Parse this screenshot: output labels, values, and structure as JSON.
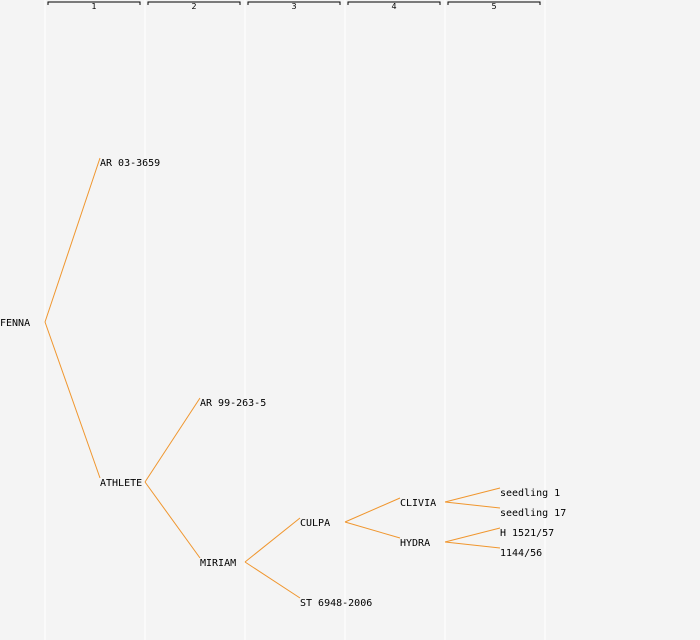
{
  "colors": {
    "background": "#f4f4f4",
    "column_divider": "#ffffff",
    "bracket": "#000000",
    "edge": "#f0962e",
    "text": "#000000"
  },
  "generations": [
    "1",
    "2",
    "3",
    "4",
    "5"
  ],
  "nodes": [
    {
      "id": "fenna",
      "label": "FENNA",
      "gen": 0,
      "row": 8
    },
    {
      "id": "ar-03-3659",
      "label": "AR 03-3659",
      "gen": 1,
      "row": 4
    },
    {
      "id": "athlete",
      "label": "ATHLETE",
      "gen": 1,
      "row": 12
    },
    {
      "id": "ar-99-263-5",
      "label": "AR 99-263-5",
      "gen": 2,
      "row": 10
    },
    {
      "id": "miriam",
      "label": "MIRIAM",
      "gen": 2,
      "row": 14
    },
    {
      "id": "culpa",
      "label": "CULPA",
      "gen": 3,
      "row": 13
    },
    {
      "id": "st-6948-2006",
      "label": "ST 6948-2006",
      "gen": 3,
      "row": 15
    },
    {
      "id": "clivia",
      "label": "CLIVIA",
      "gen": 4,
      "row": 12.5
    },
    {
      "id": "hydra",
      "label": "HYDRA",
      "gen": 4,
      "row": 13.5
    },
    {
      "id": "seedling-1",
      "label": "seedling 1",
      "gen": 5,
      "row": 12.25
    },
    {
      "id": "seedling-17",
      "label": "seedling 17",
      "gen": 5,
      "row": 12.75
    },
    {
      "id": "h-1521-57",
      "label": "H 1521/57",
      "gen": 5,
      "row": 13.25
    },
    {
      "id": "1144-56",
      "label": "1144/56",
      "gen": 5,
      "row": 13.75
    }
  ],
  "edges": [
    [
      "fenna",
      "ar-03-3659"
    ],
    [
      "fenna",
      "athlete"
    ],
    [
      "athlete",
      "ar-99-263-5"
    ],
    [
      "athlete",
      "miriam"
    ],
    [
      "miriam",
      "culpa"
    ],
    [
      "miriam",
      "st-6948-2006"
    ],
    [
      "culpa",
      "clivia"
    ],
    [
      "culpa",
      "hydra"
    ],
    [
      "clivia",
      "seedling-1"
    ],
    [
      "clivia",
      "seedling-17"
    ],
    [
      "hydra",
      "h-1521-57"
    ],
    [
      "hydra",
      "1144-56"
    ]
  ]
}
